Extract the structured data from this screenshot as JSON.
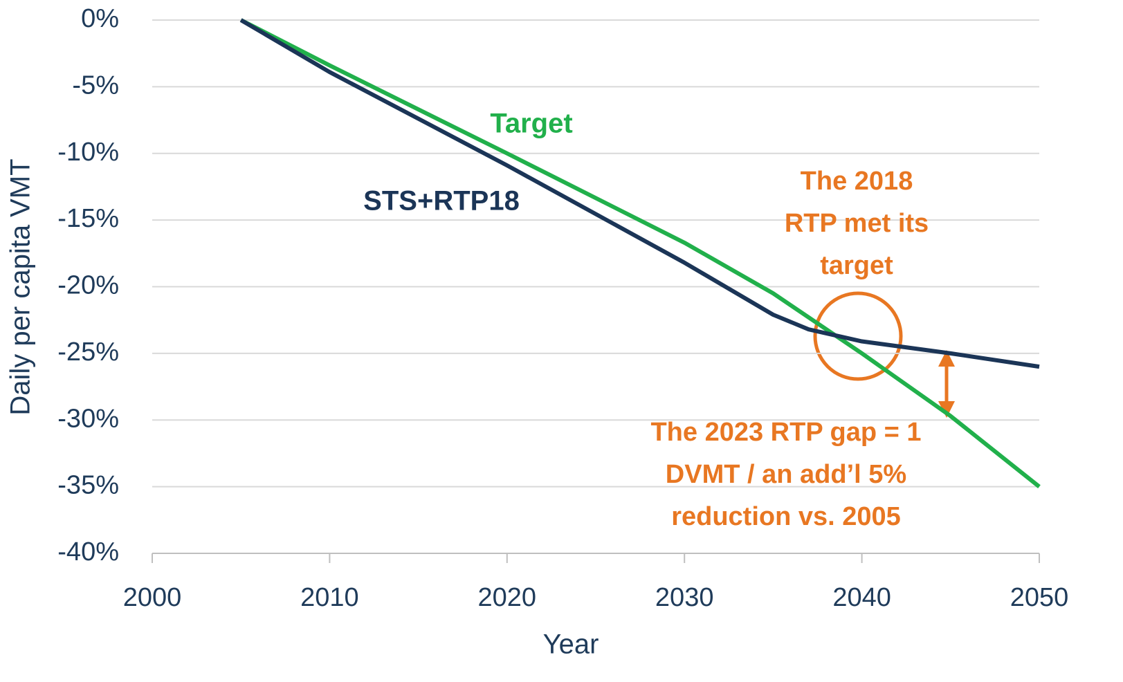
{
  "chart_data": {
    "type": "line",
    "xlabel": "Year",
    "ylabel": "Daily per capita VMT",
    "xlim": [
      2000,
      2050
    ],
    "xticks": [
      2000,
      2010,
      2020,
      2030,
      2040,
      2050
    ],
    "ylim": [
      -40,
      0
    ],
    "yticks": [
      {
        "value": 0,
        "label": "0%"
      },
      {
        "value": -5,
        "label": "-5%"
      },
      {
        "value": -10,
        "label": "-10%"
      },
      {
        "value": -15,
        "label": "-15%"
      },
      {
        "value": -20,
        "label": "-20%"
      },
      {
        "value": -25,
        "label": "-25%"
      },
      {
        "value": -30,
        "label": "-30%"
      },
      {
        "value": -35,
        "label": "-35%"
      },
      {
        "value": -40,
        "label": "-40%"
      }
    ],
    "grid": true,
    "series": [
      {
        "name": "Target",
        "color": "#21b04b",
        "x": [
          2005,
          2010,
          2020,
          2030,
          2035,
          2036,
          2040,
          2045,
          2050
        ],
        "values": [
          0,
          -3.4,
          -10,
          -16.7,
          -20.5,
          -21.4,
          -25,
          -29.7,
          -35
        ]
      },
      {
        "name": "STS+RTP18",
        "color": "#1b3557",
        "x": [
          2005,
          2010,
          2020,
          2030,
          2035,
          2037,
          2040,
          2045,
          2050
        ],
        "values": [
          0,
          -3.9,
          -10.9,
          -18.2,
          -22.1,
          -23.2,
          -24.1,
          -25,
          -26
        ]
      }
    ],
    "annotations": [
      [
        "The 2018",
        "RTP met its",
        "target"
      ],
      [
        "The 2023 RTP gap = 1",
        "DVMT / an add’l 5%",
        "reduction vs. 2005"
      ]
    ]
  }
}
